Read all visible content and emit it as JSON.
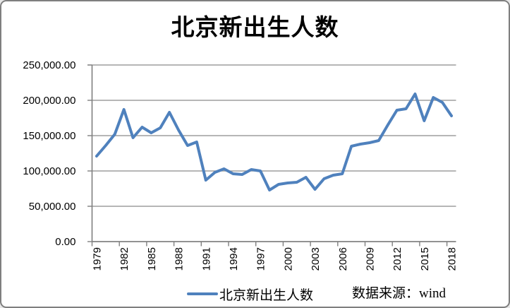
{
  "chart_data": {
    "type": "line",
    "title": "北京新出生人数",
    "x": [
      1979,
      1980,
      1981,
      1982,
      1983,
      1984,
      1985,
      1986,
      1987,
      1988,
      1989,
      1990,
      1991,
      1992,
      1993,
      1994,
      1995,
      1996,
      1997,
      1998,
      1999,
      2000,
      2001,
      2002,
      2003,
      2004,
      2005,
      2006,
      2007,
      2008,
      2009,
      2010,
      2011,
      2012,
      2013,
      2014,
      2015,
      2016,
      2017,
      2018
    ],
    "series": [
      {
        "name": "北京新出生人数",
        "color": "#4F81BD",
        "values": [
          121000,
          136000,
          152000,
          187000,
          147000,
          162000,
          154000,
          161000,
          183000,
          158000,
          136000,
          141000,
          87000,
          98000,
          103000,
          96000,
          95000,
          102000,
          100000,
          73000,
          81000,
          83000,
          84000,
          91000,
          74000,
          89000,
          94000,
          96000,
          135000,
          138000,
          140000,
          143000,
          165000,
          186000,
          188000,
          209000,
          171000,
          204000,
          197000,
          178000
        ]
      }
    ],
    "ylim": [
      0,
      250000
    ],
    "y_tick_interval": 50000,
    "y_tick_labels": [
      "0.00",
      "50,000.00",
      "100,000.00",
      "150,000.00",
      "200,000.00",
      "250,000.00"
    ],
    "x_label_interval": 3,
    "x_tick_labels": [
      "1979",
      "1982",
      "1985",
      "1988",
      "1991",
      "1994",
      "1997",
      "2000",
      "2003",
      "2006",
      "2009",
      "2012",
      "2015",
      "2018"
    ],
    "grid": true,
    "legend_position": "bottom",
    "source_note": "数据来源：wind"
  }
}
